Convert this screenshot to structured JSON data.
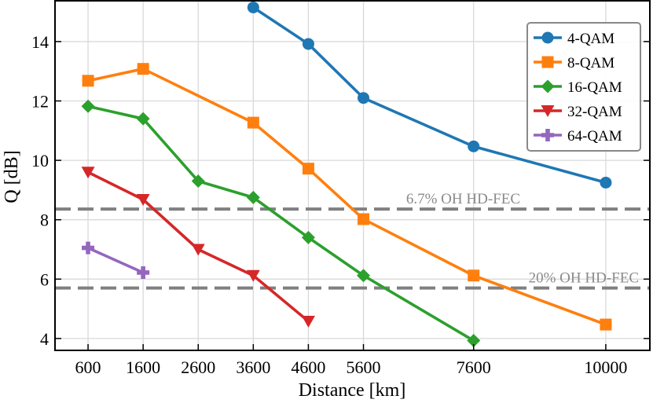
{
  "chart_data": {
    "type": "line",
    "title": "",
    "xlabel": "Distance [km]",
    "ylabel": "Q [dB]",
    "xlim": [
      0,
      10800
    ],
    "ylim": [
      3.6,
      15.4
    ],
    "x_ticks": [
      600,
      1600,
      2600,
      3600,
      4600,
      5600,
      7600,
      10000
    ],
    "y_ticks": [
      4,
      6,
      8,
      10,
      12,
      14
    ],
    "grid": true,
    "legend_position": "top-right",
    "series": [
      {
        "name": "4-QAM",
        "color": "#1f77b4",
        "marker": "circle",
        "x": [
          3600,
          4600,
          5600,
          7600,
          10000
        ],
        "y": [
          15.15,
          13.92,
          12.1,
          10.47,
          9.25
        ]
      },
      {
        "name": "8-QAM",
        "color": "#ff7f0e",
        "marker": "square",
        "x": [
          600,
          1600,
          3600,
          4600,
          5600,
          7600,
          10000
        ],
        "y": [
          12.68,
          13.08,
          11.27,
          9.72,
          8.02,
          6.12,
          4.47
        ]
      },
      {
        "name": "16-QAM",
        "color": "#2ca02c",
        "marker": "diamond",
        "x": [
          600,
          1600,
          2600,
          3600,
          4600,
          5600,
          7600
        ],
        "y": [
          11.82,
          11.4,
          9.3,
          8.75,
          7.4,
          6.12,
          3.93
        ]
      },
      {
        "name": "32-QAM",
        "color": "#d62728",
        "marker": "triangle-down",
        "x": [
          600,
          1600,
          2600,
          3600,
          4600
        ],
        "y": [
          9.6,
          8.68,
          7.0,
          6.12,
          4.58
        ]
      },
      {
        "name": "64-QAM",
        "color": "#9467bd",
        "marker": "plus",
        "x": [
          600,
          1600
        ],
        "y": [
          7.05,
          6.22
        ]
      }
    ],
    "threshold_lines": [
      {
        "label": "6.7% OH HD-FEC",
        "y": 8.36,
        "color": "#808080"
      },
      {
        "label": "20% OH HD-FEC",
        "y": 5.7,
        "color": "#808080"
      }
    ]
  }
}
